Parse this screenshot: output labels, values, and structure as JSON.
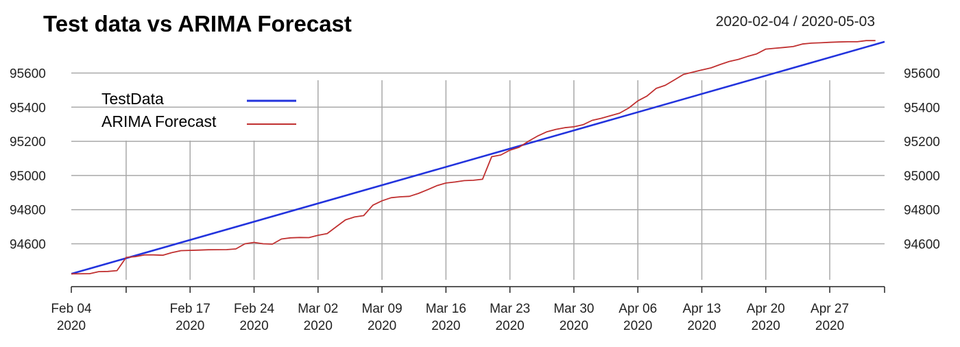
{
  "chart_data": {
    "type": "line",
    "title": "Test data vs ARIMA Forecast",
    "date_range": "2020-02-04 / 2020-05-03",
    "xlabel": "",
    "ylabel": "",
    "x_start": "2020-02-04",
    "x_end": "2020-05-03",
    "x_ticks": [
      {
        "date": "2020-02-04",
        "label": [
          "Feb 04",
          "2020"
        ]
      },
      {
        "date": "2020-02-10",
        "label": null
      },
      {
        "date": "2020-02-17",
        "label": [
          "Feb 17",
          "2020"
        ]
      },
      {
        "date": "2020-02-24",
        "label": [
          "Feb 24",
          "2020"
        ]
      },
      {
        "date": "2020-03-02",
        "label": [
          "Mar 02",
          "2020"
        ]
      },
      {
        "date": "2020-03-09",
        "label": [
          "Mar 09",
          "2020"
        ]
      },
      {
        "date": "2020-03-16",
        "label": [
          "Mar 16",
          "2020"
        ]
      },
      {
        "date": "2020-03-23",
        "label": [
          "Mar 23",
          "2020"
        ]
      },
      {
        "date": "2020-03-30",
        "label": [
          "Mar 30",
          "2020"
        ]
      },
      {
        "date": "2020-04-06",
        "label": [
          "Apr 06",
          "2020"
        ]
      },
      {
        "date": "2020-04-13",
        "label": [
          "Apr 13",
          "2020"
        ]
      },
      {
        "date": "2020-04-20",
        "label": [
          "Apr 20",
          "2020"
        ]
      },
      {
        "date": "2020-04-27",
        "label": [
          "Apr 27",
          "2020"
        ]
      },
      {
        "date": "2020-05-03",
        "label": null
      }
    ],
    "y_ticks": [
      94600,
      94800,
      95000,
      95200,
      95400,
      95600
    ],
    "ylim": [
      94430,
      95810
    ],
    "grid": true,
    "legend_position": "top-left",
    "series": [
      {
        "name": "TestData",
        "color": "#2233dd",
        "points": [
          [
            "2020-02-04",
            94424
          ],
          [
            "2020-05-03",
            95783
          ]
        ]
      },
      {
        "name": "ARIMA Forecast",
        "color": "#c03030",
        "points": [
          [
            "2020-02-04",
            94424
          ],
          [
            "2020-02-06",
            94425
          ],
          [
            "2020-02-07",
            94437
          ],
          [
            "2020-02-08",
            94438
          ],
          [
            "2020-02-09",
            94443
          ],
          [
            "2020-02-10",
            94520
          ],
          [
            "2020-02-11",
            94525
          ],
          [
            "2020-02-12",
            94535
          ],
          [
            "2020-02-13",
            94535
          ],
          [
            "2020-02-14",
            94533
          ],
          [
            "2020-02-15",
            94548
          ],
          [
            "2020-02-16",
            94560
          ],
          [
            "2020-02-18",
            94563
          ],
          [
            "2020-02-19",
            94565
          ],
          [
            "2020-02-21",
            94566
          ],
          [
            "2020-02-22",
            94570
          ],
          [
            "2020-02-23",
            94600
          ],
          [
            "2020-02-24",
            94608
          ],
          [
            "2020-02-25",
            94600
          ],
          [
            "2020-02-26",
            94598
          ],
          [
            "2020-02-27",
            94628
          ],
          [
            "2020-02-28",
            94635
          ],
          [
            "2020-02-29",
            94637
          ],
          [
            "2020-03-01",
            94636
          ],
          [
            "2020-03-02",
            94650
          ],
          [
            "2020-03-03",
            94660
          ],
          [
            "2020-03-04",
            94700
          ],
          [
            "2020-03-05",
            94740
          ],
          [
            "2020-03-06",
            94757
          ],
          [
            "2020-03-07",
            94765
          ],
          [
            "2020-03-08",
            94826
          ],
          [
            "2020-03-09",
            94852
          ],
          [
            "2020-03-10",
            94870
          ],
          [
            "2020-03-11",
            94875
          ],
          [
            "2020-03-12",
            94878
          ],
          [
            "2020-03-13",
            94895
          ],
          [
            "2020-03-14",
            94917
          ],
          [
            "2020-03-15",
            94940
          ],
          [
            "2020-03-16",
            94956
          ],
          [
            "2020-03-17",
            94962
          ],
          [
            "2020-03-18",
            94970
          ],
          [
            "2020-03-19",
            94972
          ],
          [
            "2020-03-20",
            94978
          ],
          [
            "2020-03-21",
            95110
          ],
          [
            "2020-03-22",
            95120
          ],
          [
            "2020-03-23",
            95148
          ],
          [
            "2020-03-24",
            95165
          ],
          [
            "2020-03-25",
            95200
          ],
          [
            "2020-03-26",
            95230
          ],
          [
            "2020-03-27",
            95255
          ],
          [
            "2020-03-28",
            95270
          ],
          [
            "2020-03-29",
            95280
          ],
          [
            "2020-03-30",
            95285
          ],
          [
            "2020-03-31",
            95297
          ],
          [
            "2020-04-01",
            95323
          ],
          [
            "2020-04-02",
            95335
          ],
          [
            "2020-04-03",
            95350
          ],
          [
            "2020-04-04",
            95365
          ],
          [
            "2020-04-05",
            95395
          ],
          [
            "2020-04-06",
            95437
          ],
          [
            "2020-04-07",
            95465
          ],
          [
            "2020-04-08",
            95510
          ],
          [
            "2020-04-09",
            95528
          ],
          [
            "2020-04-10",
            95560
          ],
          [
            "2020-04-11",
            95592
          ],
          [
            "2020-04-12",
            95605
          ],
          [
            "2020-04-13",
            95618
          ],
          [
            "2020-04-14",
            95630
          ],
          [
            "2020-04-15",
            95650
          ],
          [
            "2020-04-16",
            95668
          ],
          [
            "2020-04-17",
            95680
          ],
          [
            "2020-04-18",
            95697
          ],
          [
            "2020-04-19",
            95712
          ],
          [
            "2020-04-20",
            95740
          ],
          [
            "2020-04-21",
            95745
          ],
          [
            "2020-04-22",
            95750
          ],
          [
            "2020-04-23",
            95755
          ],
          [
            "2020-04-24",
            95770
          ],
          [
            "2020-04-25",
            95775
          ],
          [
            "2020-04-26",
            95777
          ],
          [
            "2020-04-27",
            95780
          ],
          [
            "2020-04-28",
            95782
          ],
          [
            "2020-04-29",
            95783
          ],
          [
            "2020-04-30",
            95783
          ],
          [
            "2020-05-01",
            95790
          ],
          [
            "2020-05-02",
            95790
          ]
        ]
      }
    ]
  }
}
